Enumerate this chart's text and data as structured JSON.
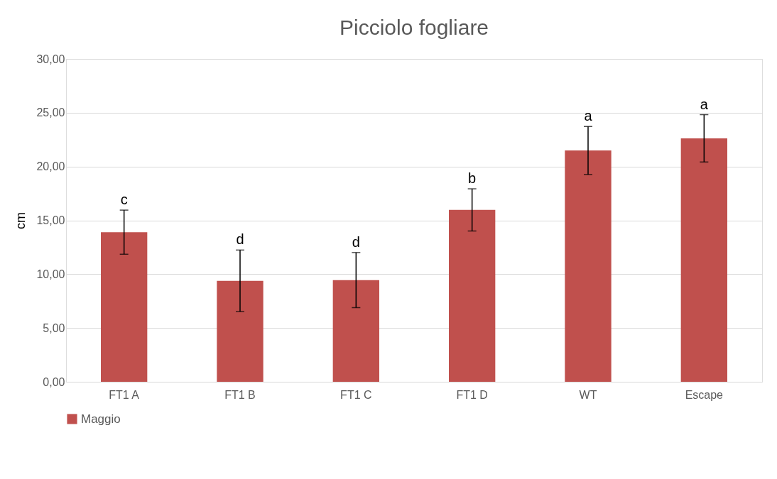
{
  "chart_data": {
    "type": "bar",
    "title": "Picciolo fogliare",
    "ylabel": "cm",
    "categories": [
      "FT1 A",
      "FT1 B",
      "FT1 C",
      "FT1 D",
      "WT",
      "Escape"
    ],
    "series": [
      {
        "name": "Maggio",
        "color": "#c0504d",
        "values": [
          13.9,
          9.38,
          9.45,
          15.97,
          21.49,
          22.62
        ],
        "errors": [
          2.05,
          2.86,
          2.56,
          1.96,
          2.23,
          2.2
        ]
      }
    ],
    "ylim": [
      0,
      30
    ],
    "yticks": [
      {
        "value": 0,
        "label": "0,00"
      },
      {
        "value": 5,
        "label": "5,00"
      },
      {
        "value": 10,
        "label": "10,00"
      },
      {
        "value": 15,
        "label": "15,00"
      },
      {
        "value": 20,
        "label": "20,00"
      },
      {
        "value": 25,
        "label": "25,00"
      },
      {
        "value": 30,
        "label": "30,00"
      }
    ],
    "annotations": [
      "c",
      "d",
      "d",
      "b",
      "a",
      "a"
    ],
    "grid": "y",
    "legend": "bottom"
  }
}
